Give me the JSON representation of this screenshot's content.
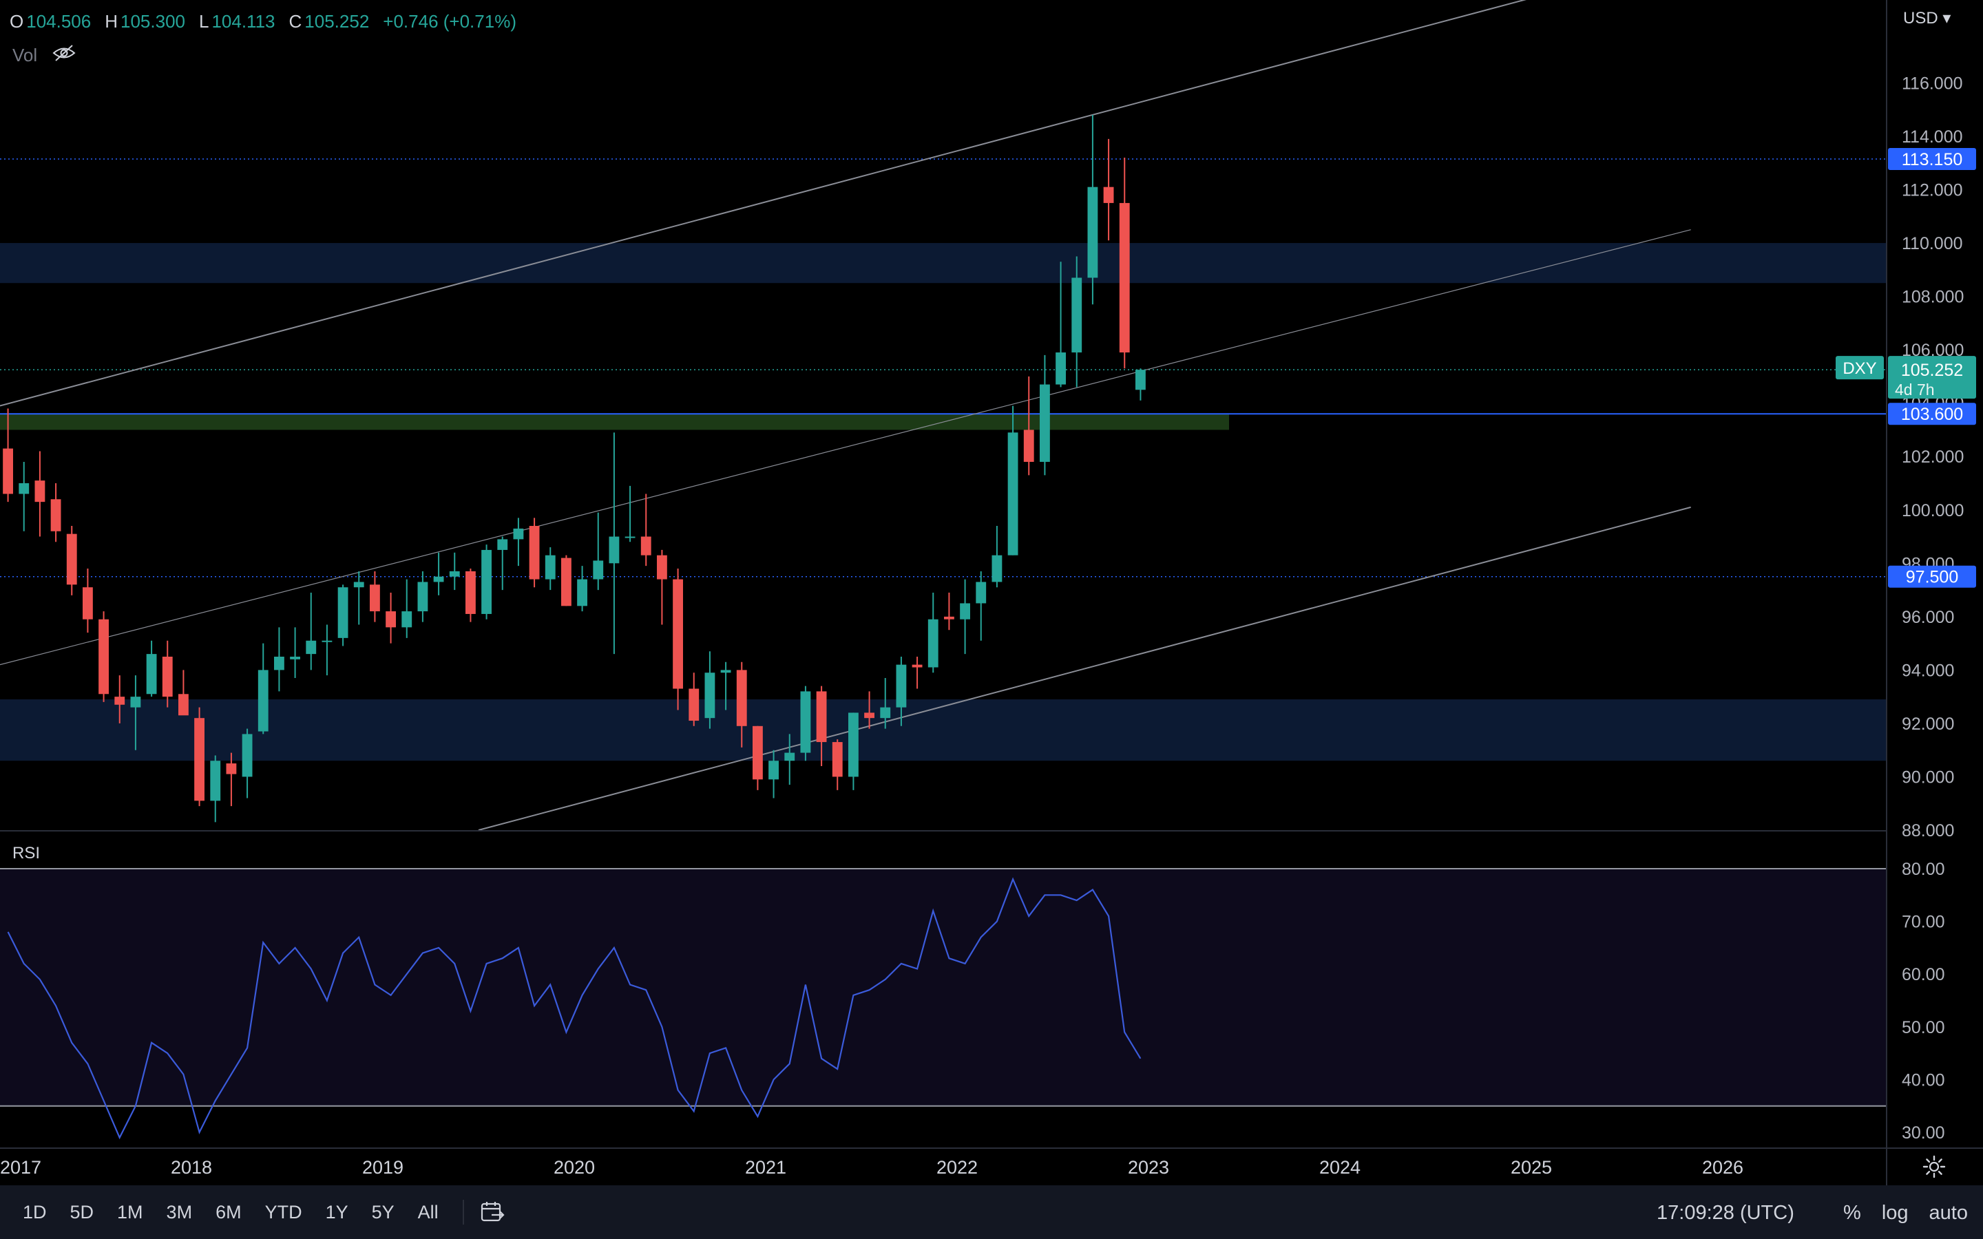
{
  "ohlc": {
    "o_label": "O",
    "o": "104.506",
    "h_label": "H",
    "h": "105.300",
    "l_label": "L",
    "l": "104.113",
    "c_label": "C",
    "c": "105.252",
    "change": "+0.746 (+0.71%)"
  },
  "vol_label": "Vol",
  "rsi_label": "RSI",
  "currency": "USD",
  "symbol": "DXY",
  "countdown": "4d 7h",
  "clock": "17:09:28 (UTC)",
  "timeframes": [
    "1D",
    "5D",
    "1M",
    "3M",
    "6M",
    "YTD",
    "1Y",
    "5Y",
    "All"
  ],
  "options": {
    "percent": "%",
    "log": "log",
    "auto": "auto"
  },
  "colors": {
    "up": "#26a69a",
    "down": "#ef5350",
    "zone_blue": "#0c1a33",
    "zone_green": "#1c3a16",
    "hline": "#2962ff",
    "rsi": "#3b5bdb",
    "channel": "#8a8d96"
  },
  "chart_data": {
    "type": "candlestick",
    "symbol": "DXY",
    "interval": "weekly",
    "x_axis": {
      "range": [
        "2017-01",
        "2026-12"
      ],
      "ticks": [
        "2017",
        "2018",
        "2019",
        "2020",
        "2021",
        "2022",
        "2023",
        "2024",
        "2025",
        "2026"
      ]
    },
    "y_axis": {
      "range": [
        88,
        117
      ],
      "ticks": [
        "88.000",
        "90.000",
        "92.000",
        "94.000",
        "96.000",
        "98.000",
        "100.000",
        "102.000",
        "104.000",
        "106.000",
        "108.000",
        "110.000",
        "112.000",
        "114.000",
        "116.000"
      ]
    },
    "price_series": [
      [
        "2017-01",
        102.3,
        103.8,
        100.3,
        100.6
      ],
      [
        "2017-02",
        100.6,
        101.8,
        99.2,
        101.0
      ],
      [
        "2017-03",
        101.1,
        102.2,
        99.0,
        100.3
      ],
      [
        "2017-04",
        100.4,
        101.0,
        98.8,
        99.2
      ],
      [
        "2017-05",
        99.1,
        99.4,
        96.8,
        97.2
      ],
      [
        "2017-06",
        97.1,
        97.8,
        95.4,
        95.9
      ],
      [
        "2017-07",
        95.9,
        96.2,
        92.8,
        93.1
      ],
      [
        "2017-08",
        93.0,
        93.8,
        92.0,
        92.7
      ],
      [
        "2017-09",
        92.6,
        93.8,
        91.0,
        93.0
      ],
      [
        "2017-10",
        93.1,
        95.1,
        93.0,
        94.6
      ],
      [
        "2017-11",
        94.5,
        95.1,
        92.6,
        93.0
      ],
      [
        "2017-12",
        93.1,
        94.0,
        92.4,
        92.3
      ],
      [
        "2018-01",
        92.2,
        92.6,
        88.9,
        89.1
      ],
      [
        "2018-02",
        89.1,
        90.8,
        88.3,
        90.6
      ],
      [
        "2018-03",
        90.5,
        90.9,
        88.9,
        90.1
      ],
      [
        "2018-04",
        90.0,
        91.8,
        89.2,
        91.6
      ],
      [
        "2018-05",
        91.7,
        95.0,
        91.6,
        94.0
      ],
      [
        "2018-06",
        94.0,
        95.6,
        93.2,
        94.5
      ],
      [
        "2018-07",
        94.4,
        95.6,
        93.7,
        94.5
      ],
      [
        "2018-08",
        94.6,
        96.9,
        94.0,
        95.1
      ],
      [
        "2018-09",
        95.1,
        95.7,
        93.8,
        95.1
      ],
      [
        "2018-10",
        95.2,
        97.2,
        94.9,
        97.1
      ],
      [
        "2018-11",
        97.1,
        97.7,
        95.7,
        97.3
      ],
      [
        "2018-12",
        97.2,
        97.7,
        95.8,
        96.2
      ],
      [
        "2019-01",
        96.2,
        96.9,
        95.0,
        95.6
      ],
      [
        "2019-02",
        95.6,
        97.4,
        95.2,
        96.2
      ],
      [
        "2019-03",
        96.2,
        97.7,
        95.8,
        97.3
      ],
      [
        "2019-04",
        97.3,
        98.4,
        96.8,
        97.5
      ],
      [
        "2019-05",
        97.5,
        98.4,
        97.0,
        97.7
      ],
      [
        "2019-06",
        97.7,
        97.8,
        95.8,
        96.1
      ],
      [
        "2019-07",
        96.1,
        98.7,
        95.9,
        98.5
      ],
      [
        "2019-08",
        98.5,
        99.0,
        97.0,
        98.9
      ],
      [
        "2019-09",
        98.9,
        99.7,
        97.9,
        99.3
      ],
      [
        "2019-10",
        99.4,
        99.7,
        97.1,
        97.4
      ],
      [
        "2019-11",
        97.4,
        98.6,
        97.0,
        98.3
      ],
      [
        "2019-12",
        98.2,
        98.3,
        96.4,
        96.4
      ],
      [
        "2020-01",
        96.4,
        97.9,
        96.2,
        97.4
      ],
      [
        "2020-02",
        97.4,
        99.9,
        97.0,
        98.1
      ],
      [
        "2020-03",
        98.0,
        102.9,
        94.6,
        99.0
      ],
      [
        "2020-04",
        99.0,
        100.9,
        98.8,
        99.0
      ],
      [
        "2020-05",
        99.0,
        100.6,
        97.9,
        98.3
      ],
      [
        "2020-06",
        98.3,
        98.5,
        95.7,
        97.4
      ],
      [
        "2020-07",
        97.4,
        97.8,
        92.5,
        93.3
      ],
      [
        "2020-08",
        93.3,
        93.9,
        91.9,
        92.1
      ],
      [
        "2020-09",
        92.2,
        94.7,
        91.8,
        93.9
      ],
      [
        "2020-10",
        93.9,
        94.3,
        92.5,
        94.0
      ],
      [
        "2020-11",
        94.0,
        94.3,
        91.1,
        91.9
      ],
      [
        "2020-12",
        91.9,
        91.9,
        89.5,
        89.9
      ],
      [
        "2021-01",
        89.9,
        91.0,
        89.2,
        90.6
      ],
      [
        "2021-02",
        90.6,
        91.6,
        89.7,
        90.9
      ],
      [
        "2021-03",
        90.9,
        93.4,
        90.6,
        93.2
      ],
      [
        "2021-04",
        93.2,
        93.4,
        90.4,
        91.3
      ],
      [
        "2021-05",
        91.3,
        91.4,
        89.5,
        90.0
      ],
      [
        "2021-06",
        90.0,
        92.4,
        89.5,
        92.4
      ],
      [
        "2021-07",
        92.4,
        93.2,
        91.8,
        92.2
      ],
      [
        "2021-08",
        92.2,
        93.7,
        91.8,
        92.6
      ],
      [
        "2021-09",
        92.6,
        94.5,
        91.9,
        94.2
      ],
      [
        "2021-10",
        94.2,
        94.5,
        93.3,
        94.1
      ],
      [
        "2021-11",
        94.1,
        96.9,
        93.9,
        95.9
      ],
      [
        "2021-12",
        96.0,
        96.9,
        95.5,
        95.9
      ],
      [
        "2022-01",
        95.9,
        97.4,
        94.6,
        96.5
      ],
      [
        "2022-02",
        96.5,
        97.7,
        95.1,
        97.3
      ],
      [
        "2022-03",
        97.3,
        99.4,
        97.1,
        98.3
      ],
      [
        "2022-04",
        98.3,
        103.9,
        98.3,
        102.9
      ],
      [
        "2022-05",
        103.0,
        105.0,
        101.3,
        101.8
      ],
      [
        "2022-06",
        101.8,
        105.8,
        101.3,
        104.7
      ],
      [
        "2022-07",
        104.7,
        109.3,
        104.6,
        105.9
      ],
      [
        "2022-08",
        105.9,
        109.5,
        104.6,
        108.7
      ],
      [
        "2022-09",
        108.7,
        114.8,
        107.7,
        112.1
      ],
      [
        "2022-10",
        112.1,
        113.9,
        110.1,
        111.5
      ],
      [
        "2022-11",
        111.5,
        113.2,
        105.3,
        105.9
      ],
      [
        "2022-12",
        104.5,
        105.3,
        104.1,
        105.252
      ]
    ],
    "horizontal_lines": [
      113.15,
      103.6,
      97.5
    ],
    "price_labels": [
      "113.150",
      "105.252",
      "103.600",
      "97.500"
    ],
    "zones": [
      {
        "type": "resistance",
        "from": 108.5,
        "to": 110.0
      },
      {
        "type": "support",
        "from": 103.0,
        "to": 103.6
      },
      {
        "type": "support",
        "from": 90.6,
        "to": 92.9
      }
    ],
    "trendlines": [
      {
        "from": [
          "2017-01",
          103.9
        ],
        "to": [
          "2025-03",
          119.5
        ]
      },
      {
        "from": [
          "2017-01",
          94.2
        ],
        "to": [
          "2025-11",
          110.5
        ]
      },
      {
        "from": [
          "2019-07",
          88.0
        ],
        "to": [
          "2025-11",
          100.1
        ]
      }
    ],
    "rsi": {
      "range": [
        27,
        82
      ],
      "upper_band": 80,
      "lower_band": 35,
      "ticks": [
        "30.00",
        "40.00",
        "50.00",
        "60.00",
        "70.00",
        "80.00"
      ],
      "values": [
        [
          "2017-01",
          68
        ],
        [
          "2017-02",
          62
        ],
        [
          "2017-03",
          59
        ],
        [
          "2017-04",
          54
        ],
        [
          "2017-05",
          47
        ],
        [
          "2017-06",
          43
        ],
        [
          "2017-07",
          36
        ],
        [
          "2017-08",
          29
        ],
        [
          "2017-09",
          35
        ],
        [
          "2017-10",
          47
        ],
        [
          "2017-11",
          45
        ],
        [
          "2017-12",
          41
        ],
        [
          "2018-01",
          30
        ],
        [
          "2018-02",
          36
        ],
        [
          "2018-03",
          41
        ],
        [
          "2018-04",
          46
        ],
        [
          "2018-05",
          66
        ],
        [
          "2018-06",
          62
        ],
        [
          "2018-07",
          65
        ],
        [
          "2018-08",
          61
        ],
        [
          "2018-09",
          55
        ],
        [
          "2018-10",
          64
        ],
        [
          "2018-11",
          67
        ],
        [
          "2018-12",
          58
        ],
        [
          "2019-01",
          56
        ],
        [
          "2019-02",
          60
        ],
        [
          "2019-03",
          64
        ],
        [
          "2019-04",
          65
        ],
        [
          "2019-05",
          62
        ],
        [
          "2019-06",
          53
        ],
        [
          "2019-07",
          62
        ],
        [
          "2019-08",
          63
        ],
        [
          "2019-09",
          65
        ],
        [
          "2019-10",
          54
        ],
        [
          "2019-11",
          58
        ],
        [
          "2019-12",
          49
        ],
        [
          "2020-01",
          56
        ],
        [
          "2020-02",
          61
        ],
        [
          "2020-03",
          65
        ],
        [
          "2020-04",
          58
        ],
        [
          "2020-05",
          57
        ],
        [
          "2020-06",
          50
        ],
        [
          "2020-07",
          38
        ],
        [
          "2020-08",
          34
        ],
        [
          "2020-09",
          45
        ],
        [
          "2020-10",
          46
        ],
        [
          "2020-11",
          38
        ],
        [
          "2020-12",
          33
        ],
        [
          "2021-01",
          40
        ],
        [
          "2021-02",
          43
        ],
        [
          "2021-03",
          58
        ],
        [
          "2021-04",
          44
        ],
        [
          "2021-05",
          42
        ],
        [
          "2021-06",
          56
        ],
        [
          "2021-07",
          57
        ],
        [
          "2021-08",
          59
        ],
        [
          "2021-09",
          62
        ],
        [
          "2021-10",
          61
        ],
        [
          "2021-11",
          72
        ],
        [
          "2021-12",
          63
        ],
        [
          "2022-01",
          62
        ],
        [
          "2022-02",
          67
        ],
        [
          "2022-03",
          70
        ],
        [
          "2022-04",
          78
        ],
        [
          "2022-05",
          71
        ],
        [
          "2022-06",
          75
        ],
        [
          "2022-07",
          75
        ],
        [
          "2022-08",
          74
        ],
        [
          "2022-09",
          76
        ],
        [
          "2022-10",
          71
        ],
        [
          "2022-11",
          49
        ],
        [
          "2022-12",
          44
        ]
      ]
    }
  }
}
